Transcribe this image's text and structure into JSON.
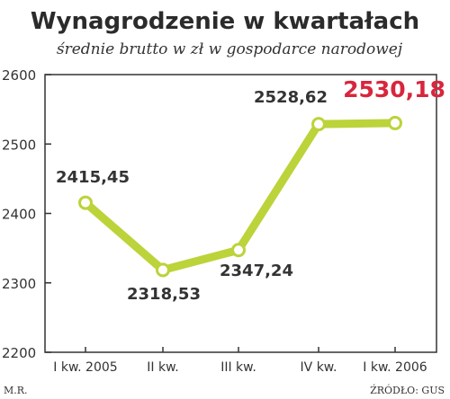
{
  "chart_data": {
    "type": "line",
    "title": "Wynagrodzenie w kwartałach",
    "subtitle": "średnie brutto w zł w gospodarce narodowej",
    "categories": [
      "I kw. 2005",
      "II kw.",
      "III kw.",
      "IV kw.",
      "I kw. 2006"
    ],
    "values": [
      2415.45,
      2318.53,
      2347.24,
      2528.62,
      2530.18
    ],
    "value_labels": [
      "2415,45",
      "2318,53",
      "2347,24",
      "2528,62",
      "2530,18"
    ],
    "highlight_index": 4,
    "ylim": [
      2200,
      2600
    ],
    "yticks": [
      2200,
      2300,
      2400,
      2500,
      2600
    ],
    "grid": false,
    "line_color": "#bcd33a",
    "highlight_color": "#d7263d"
  },
  "footer": {
    "author": "M.R.",
    "source": "ŹRÓDŁO: GUS"
  }
}
